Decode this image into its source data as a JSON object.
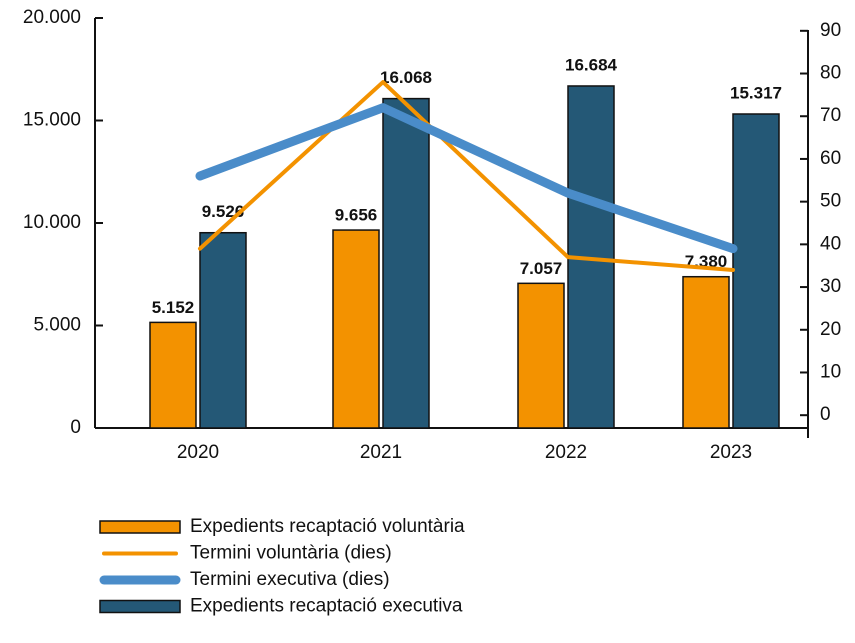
{
  "chart_data": {
    "type": "bar",
    "categories": [
      "2020",
      "2021",
      "2022",
      "2023"
    ],
    "series": [
      {
        "name": "Expedients recaptació voluntària",
        "type": "bar",
        "color": "#f39200",
        "values": [
          5152,
          9656,
          7057,
          7380
        ],
        "value_labels": [
          "5.152",
          "9.656",
          "7.057",
          "7.380"
        ]
      },
      {
        "name": "Termini voluntària (dies)",
        "type": "line",
        "axis": "y2",
        "color": "#f39200",
        "values": [
          39,
          78,
          37,
          34
        ]
      },
      {
        "name": "Termini executiva (dies)",
        "type": "line",
        "axis": "y2",
        "color": "#4a8cc9",
        "values": [
          56,
          72,
          52,
          39
        ]
      },
      {
        "name": "Expedients recaptació executiva",
        "type": "bar",
        "color": "#245876",
        "values": [
          9526,
          16068,
          16684,
          15317
        ],
        "value_labels": [
          "9.526",
          "16.068",
          "16.684",
          "15.317"
        ]
      }
    ],
    "ylim": [
      0,
      20000
    ],
    "yticks": [
      0,
      {
        "value": 5000,
        "label": "5.000"
      },
      {
        "value": 10000,
        "label": "10.000"
      },
      {
        "value": 15000,
        "label": "15.000"
      },
      {
        "value": 20000,
        "label": "20.000"
      }
    ],
    "y2lim": [
      -3,
      93
    ],
    "y2ticks": [
      0,
      10,
      20,
      30,
      40,
      50,
      60,
      70,
      80,
      90
    ],
    "grid": false
  }
}
